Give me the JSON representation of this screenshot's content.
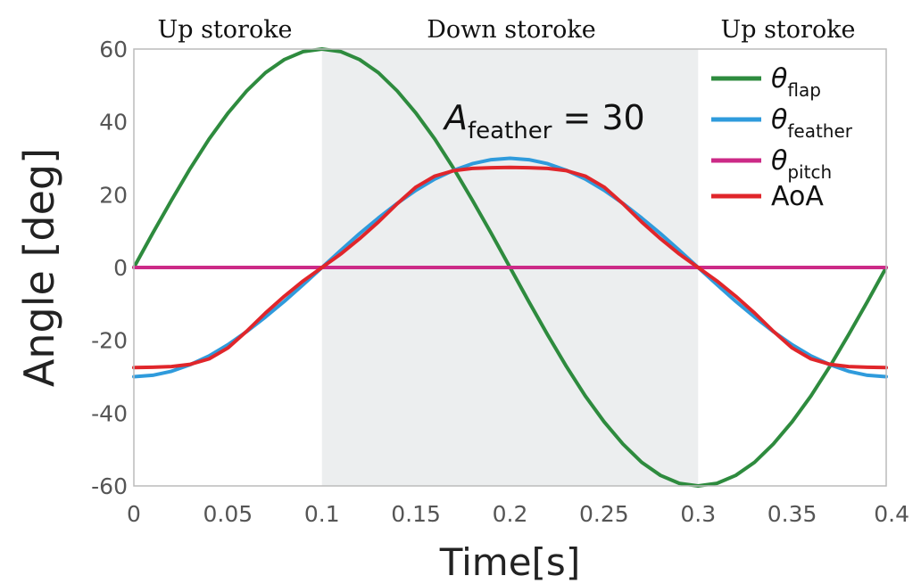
{
  "chart_data": {
    "type": "line",
    "xlabel": "Time[s]",
    "ylabel": "Angle [deg]",
    "xlim": [
      0,
      0.4
    ],
    "ylim": [
      -60,
      60
    ],
    "x_ticks": [
      "0",
      "0.05",
      "0.1",
      "0.15",
      "0.2",
      "0.25",
      "0.3",
      "0.35",
      "0.4"
    ],
    "x_tick_values": [
      0,
      0.05,
      0.1,
      0.15,
      0.2,
      0.25,
      0.3,
      0.35,
      0.4
    ],
    "y_ticks": [
      "60",
      "40",
      "20",
      "0",
      "-20",
      "-40",
      "-60"
    ],
    "y_tick_values": [
      60,
      40,
      20,
      0,
      -20,
      -40,
      -60
    ],
    "phases": [
      {
        "label": "Up storoke",
        "x_start": 0,
        "x_end": 0.1,
        "shaded": false
      },
      {
        "label": "Down storoke",
        "x_start": 0.1,
        "x_end": 0.3,
        "shaded": true
      },
      {
        "label": "Up storoke",
        "x_start": 0.3,
        "x_end": 0.4,
        "shaded": false
      }
    ],
    "annotation": {
      "symbol": "A",
      "subscript": "feather",
      "text": "= 30"
    },
    "legend_position": "top-right",
    "series": [
      {
        "name": "θ",
        "subscript": "flap",
        "color": "#2e8b3e",
        "x": [
          0,
          0.01,
          0.02,
          0.03,
          0.04,
          0.05,
          0.06,
          0.07,
          0.08,
          0.09,
          0.1,
          0.11,
          0.12,
          0.13,
          0.14,
          0.15,
          0.16,
          0.17,
          0.18,
          0.19,
          0.2,
          0.21,
          0.22,
          0.23,
          0.24,
          0.25,
          0.26,
          0.27,
          0.28,
          0.29,
          0.3,
          0.31,
          0.32,
          0.33,
          0.34,
          0.35,
          0.36,
          0.37,
          0.38,
          0.39,
          0.4
        ],
        "y": [
          0,
          9.4,
          18.5,
          27.2,
          35.3,
          42.4,
          48.5,
          53.5,
          57.1,
          59.3,
          60,
          59.3,
          57.1,
          53.5,
          48.5,
          42.4,
          35.3,
          27.2,
          18.5,
          9.4,
          0,
          -9.4,
          -18.5,
          -27.2,
          -35.3,
          -42.4,
          -48.5,
          -53.5,
          -57.1,
          -59.3,
          -60,
          -59.3,
          -57.1,
          -53.5,
          -48.5,
          -42.4,
          -35.3,
          -27.2,
          -18.5,
          -9.4,
          0
        ]
      },
      {
        "name": "θ",
        "subscript": "feather",
        "color": "#2f9bdc",
        "x": [
          0,
          0.01,
          0.02,
          0.03,
          0.04,
          0.05,
          0.06,
          0.07,
          0.08,
          0.09,
          0.1,
          0.11,
          0.12,
          0.13,
          0.14,
          0.15,
          0.16,
          0.17,
          0.18,
          0.19,
          0.2,
          0.21,
          0.22,
          0.23,
          0.24,
          0.25,
          0.26,
          0.27,
          0.28,
          0.29,
          0.3,
          0.31,
          0.32,
          0.33,
          0.34,
          0.35,
          0.36,
          0.37,
          0.38,
          0.39,
          0.4
        ],
        "y": [
          -30,
          -29.6,
          -28.5,
          -26.7,
          -24.3,
          -21.2,
          -17.6,
          -13.6,
          -9.3,
          -4.7,
          0,
          4.7,
          9.3,
          13.6,
          17.6,
          21.2,
          24.3,
          26.7,
          28.5,
          29.6,
          30,
          29.6,
          28.5,
          26.7,
          24.3,
          21.2,
          17.6,
          13.6,
          9.3,
          4.7,
          0,
          -4.7,
          -9.3,
          -13.6,
          -17.6,
          -21.2,
          -24.3,
          -26.7,
          -28.5,
          -29.6,
          -30
        ]
      },
      {
        "name": "θ",
        "subscript": "pitch",
        "color": "#cc2a87",
        "x": [
          0,
          0.4
        ],
        "y": [
          0,
          0
        ]
      },
      {
        "name": "AoA",
        "subscript": "",
        "color": "#e0262b",
        "x": [
          0,
          0.01,
          0.02,
          0.03,
          0.04,
          0.05,
          0.06,
          0.07,
          0.08,
          0.09,
          0.1,
          0.11,
          0.12,
          0.13,
          0.14,
          0.15,
          0.16,
          0.17,
          0.18,
          0.19,
          0.2,
          0.21,
          0.22,
          0.23,
          0.24,
          0.25,
          0.26,
          0.27,
          0.28,
          0.29,
          0.3,
          0.31,
          0.32,
          0.33,
          0.34,
          0.35,
          0.36,
          0.37,
          0.38,
          0.39,
          0.4
        ],
        "y": [
          -27.5,
          -27.4,
          -27.2,
          -26.6,
          -25.1,
          -22.1,
          -17.5,
          -12.5,
          -7.9,
          -3.7,
          0,
          3.7,
          7.9,
          12.5,
          17.5,
          22.1,
          25.1,
          26.6,
          27.2,
          27.4,
          27.5,
          27.4,
          27.2,
          26.6,
          25.1,
          22.1,
          17.5,
          12.5,
          7.9,
          3.7,
          0,
          -3.7,
          -7.9,
          -12.5,
          -17.5,
          -22.1,
          -25.1,
          -26.6,
          -27.2,
          -27.4,
          -27.5
        ]
      }
    ]
  }
}
